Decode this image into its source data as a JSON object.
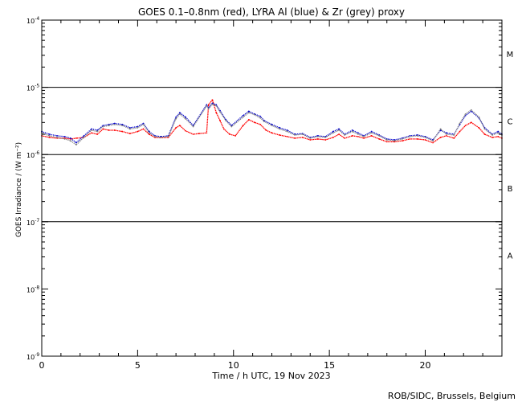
{
  "chart_data": {
    "type": "line",
    "title": "GOES 0.1–0.8nm (red), LYRA Al (blue) & Zr (grey) proxy",
    "xlabel": "Time / h UTC, 19 Nov 2023",
    "ylabel": "GOES Irradiance / (W m⁻²)",
    "credit": "ROB/SIDC, Brussels, Belgium",
    "y_scale": "log",
    "xlim": [
      0,
      24
    ],
    "ylim": [
      1e-09,
      0.0001
    ],
    "x_ticks": [
      0,
      5,
      10,
      15,
      20
    ],
    "x_tick_labels": [
      "0",
      "5",
      "10",
      "15",
      "20"
    ],
    "y_ticks": [
      1e-09,
      1e-08,
      1e-07,
      1e-06,
      1e-05,
      0.0001
    ],
    "y_tick_labels": [
      {
        "base": "10",
        "exp": "-9"
      },
      {
        "base": "10",
        "exp": "-8"
      },
      {
        "base": "10",
        "exp": "-7"
      },
      {
        "base": "10",
        "exp": "-6"
      },
      {
        "base": "10",
        "exp": "-5"
      },
      {
        "base": "10",
        "exp": "-4"
      }
    ],
    "flare_class_lines": [
      1e-07,
      1e-06,
      1e-05
    ],
    "flare_classes": [
      {
        "label": "A",
        "center": 3.16e-08
      },
      {
        "label": "B",
        "center": 3.16e-07
      },
      {
        "label": "C",
        "center": 3.16e-06
      },
      {
        "label": "M",
        "center": 3.16e-05
      }
    ],
    "series": [
      {
        "name": "GOES 0.1–0.8nm",
        "color": "#ff0000",
        "x": [
          0.0,
          0.4,
          0.8,
          1.2,
          1.5,
          1.8,
          2.2,
          2.6,
          2.9,
          3.2,
          3.5,
          3.8,
          4.2,
          4.6,
          5.0,
          5.3,
          5.6,
          5.9,
          6.2,
          6.6,
          7.0,
          7.2,
          7.5,
          7.9,
          8.2,
          8.6,
          8.7,
          8.9,
          9.1,
          9.3,
          9.5,
          9.8,
          10.1,
          10.5,
          10.8,
          11.1,
          11.4,
          11.7,
          12.0,
          12.4,
          12.8,
          13.2,
          13.6,
          14.0,
          14.4,
          14.8,
          15.2,
          15.5,
          15.8,
          16.2,
          16.5,
          16.8,
          17.2,
          17.6,
          18.0,
          18.4,
          18.8,
          19.2,
          19.6,
          20.0,
          20.4,
          20.8,
          21.1,
          21.5,
          21.8,
          22.1,
          22.4,
          22.8,
          23.1,
          23.5,
          23.8,
          24.0
        ],
        "y": [
          1.9e-06,
          1.8e-06,
          1.75e-06,
          1.75e-06,
          1.7e-06,
          1.75e-06,
          1.8e-06,
          2.1e-06,
          2e-06,
          2.4e-06,
          2.3e-06,
          2.3e-06,
          2.2e-06,
          2.05e-06,
          2.2e-06,
          2.4e-06,
          2e-06,
          1.8e-06,
          1.78e-06,
          1.8e-06,
          2.5e-06,
          2.7e-06,
          2.25e-06,
          2e-06,
          2.05e-06,
          2.1e-06,
          5.5e-06,
          6.5e-06,
          4.2e-06,
          3.2e-06,
          2.4e-06,
          2e-06,
          1.9e-06,
          2.7e-06,
          3.3e-06,
          3e-06,
          2.8e-06,
          2.3e-06,
          2.1e-06,
          1.95e-06,
          1.85e-06,
          1.75e-06,
          1.8e-06,
          1.65e-06,
          1.7e-06,
          1.65e-06,
          1.8e-06,
          2e-06,
          1.75e-06,
          1.9e-06,
          1.85e-06,
          1.75e-06,
          1.9e-06,
          1.7e-06,
          1.55e-06,
          1.55e-06,
          1.6e-06,
          1.7e-06,
          1.7e-06,
          1.65e-06,
          1.5e-06,
          1.8e-06,
          1.9e-06,
          1.75e-06,
          2.2e-06,
          2.7e-06,
          3e-06,
          2.5e-06,
          2e-06,
          1.8e-06,
          1.85e-06,
          1.75e-06
        ]
      },
      {
        "name": "LYRA Al",
        "color": "#0000cc",
        "x": [
          0.0,
          0.4,
          0.8,
          1.2,
          1.5,
          1.8,
          2.2,
          2.6,
          2.9,
          3.2,
          3.5,
          3.8,
          4.2,
          4.6,
          5.0,
          5.3,
          5.6,
          5.9,
          6.2,
          6.6,
          7.0,
          7.2,
          7.5,
          7.9,
          8.6,
          8.7,
          8.9,
          9.1,
          9.3,
          9.6,
          9.9,
          10.5,
          10.8,
          11.1,
          11.4,
          11.6,
          12.0,
          12.4,
          12.8,
          13.2,
          13.6,
          14.0,
          14.4,
          14.8,
          15.2,
          15.5,
          15.8,
          16.2,
          16.5,
          16.8,
          17.2,
          17.6,
          18.0,
          18.4,
          18.8,
          19.2,
          19.6,
          20.0,
          20.4,
          20.8,
          21.1,
          21.5,
          21.8,
          22.1,
          22.4,
          22.8,
          23.1,
          23.5,
          23.8,
          24.0
        ],
        "y": [
          2.2e-06,
          2e-06,
          1.9e-06,
          1.85e-06,
          1.75e-06,
          1.5e-06,
          1.9e-06,
          2.4e-06,
          2.3e-06,
          2.7e-06,
          2.8e-06,
          2.9e-06,
          2.8e-06,
          2.5e-06,
          2.6e-06,
          2.9e-06,
          2.2e-06,
          1.9e-06,
          1.85e-06,
          1.9e-06,
          3.6e-06,
          4.2e-06,
          3.6e-06,
          2.7e-06,
          5.5e-06,
          5e-06,
          5.8e-06,
          5.5e-06,
          4.5e-06,
          3.3e-06,
          2.7e-06,
          3.8e-06,
          4.4e-06,
          4e-06,
          3.7e-06,
          3.2e-06,
          2.8e-06,
          2.5e-06,
          2.3e-06,
          2e-06,
          2.05e-06,
          1.8e-06,
          1.9e-06,
          1.85e-06,
          2.2e-06,
          2.4e-06,
          2e-06,
          2.3e-06,
          2.1e-06,
          1.9e-06,
          2.2e-06,
          1.95e-06,
          1.7e-06,
          1.65e-06,
          1.75e-06,
          1.9e-06,
          1.95e-06,
          1.85e-06,
          1.65e-06,
          2.3e-06,
          2.1e-06,
          2e-06,
          2.8e-06,
          3.8e-06,
          4.4e-06,
          3.5e-06,
          2.5e-06,
          2e-06,
          2.2e-06,
          2e-06
        ]
      },
      {
        "name": "LYRA Zr",
        "color": "#808080",
        "x": [
          0.0,
          0.4,
          0.8,
          1.2,
          1.5,
          1.8,
          2.2,
          2.6,
          2.9,
          3.2,
          3.5,
          3.8,
          4.2,
          4.6,
          5.0,
          5.3,
          5.6,
          5.9,
          6.2,
          6.6,
          7.0,
          7.2,
          7.5,
          7.9,
          8.6,
          8.7,
          8.9,
          9.1,
          9.3,
          9.6,
          9.9,
          10.5,
          10.8,
          11.1,
          11.4,
          11.6,
          12.0,
          12.4,
          12.8,
          13.2,
          13.6,
          14.0,
          14.4,
          14.8,
          15.2,
          15.5,
          15.8,
          16.2,
          16.5,
          16.8,
          17.2,
          17.6,
          18.0,
          18.4,
          18.8,
          19.2,
          19.6,
          20.0,
          20.4,
          20.8,
          21.1,
          21.5,
          21.8,
          22.1,
          22.4,
          22.8,
          23.1,
          23.5,
          23.8,
          24.0
        ],
        "y": [
          2.1e-06,
          1.9e-06,
          1.8e-06,
          1.7e-06,
          1.6e-06,
          1.4e-06,
          1.8e-06,
          2.3e-06,
          2.2e-06,
          2.6e-06,
          2.7e-06,
          2.8e-06,
          2.7e-06,
          2.4e-06,
          2.5e-06,
          2.8e-06,
          2.1e-06,
          1.85e-06,
          1.8e-06,
          1.85e-06,
          3.4e-06,
          4e-06,
          3.4e-06,
          2.6e-06,
          5.3e-06,
          4.8e-06,
          5.6e-06,
          5.3e-06,
          4.3e-06,
          3.2e-06,
          2.6e-06,
          3.6e-06,
          4.2e-06,
          3.9e-06,
          3.5e-06,
          3.1e-06,
          2.7e-06,
          2.4e-06,
          2.2e-06,
          1.95e-06,
          2e-06,
          1.75e-06,
          1.85e-06,
          1.8e-06,
          2.1e-06,
          2.3e-06,
          1.95e-06,
          2.2e-06,
          2e-06,
          1.85e-06,
          2.1e-06,
          1.9e-06,
          1.65e-06,
          1.6e-06,
          1.7e-06,
          1.85e-06,
          1.9e-06,
          1.8e-06,
          1.6e-06,
          2.4e-06,
          2e-06,
          1.95e-06,
          2.9e-06,
          4e-06,
          4.6e-06,
          3.6e-06,
          2.4e-06,
          1.95e-06,
          2.1e-06,
          1.95e-06
        ]
      }
    ]
  }
}
